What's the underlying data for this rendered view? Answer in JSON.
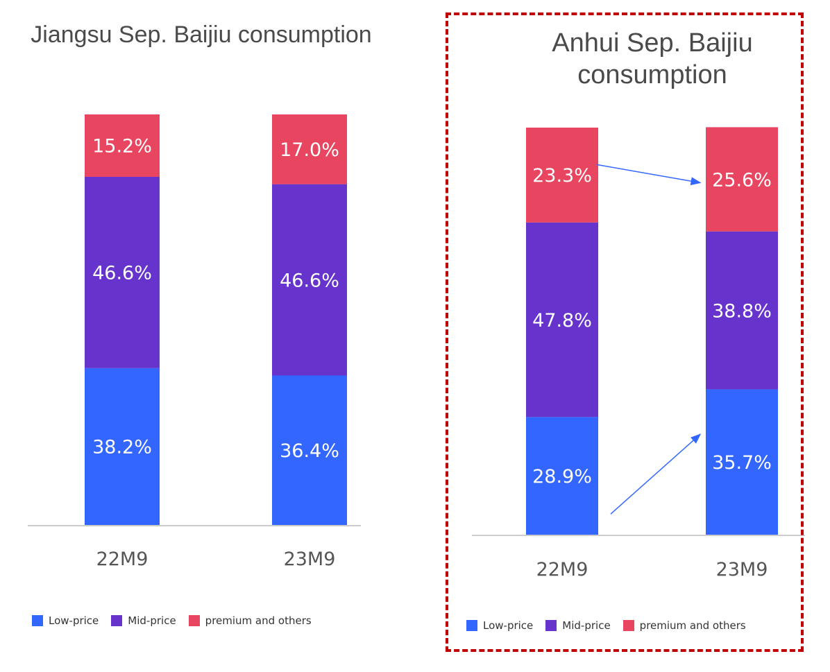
{
  "colors": {
    "low": "#3366ff",
    "mid": "#6633cc",
    "premium": "#e84660",
    "axis": "#cccccc",
    "arrow": "#3366ff",
    "highlight": "#c00000"
  },
  "chart_data": [
    {
      "type": "bar",
      "stacked": true,
      "title": "Jiangsu Sep. Baijiu consumption",
      "categories": [
        "22M9",
        "23M9"
      ],
      "series": [
        {
          "name": "Low-price",
          "values": [
            38.2,
            36.4
          ],
          "labels": [
            "38.2%",
            "36.4%"
          ]
        },
        {
          "name": "Mid-price",
          "values": [
            46.6,
            46.6
          ],
          "labels": [
            "46.6%",
            "46.6%"
          ]
        },
        {
          "name": "premium and others",
          "values": [
            15.2,
            17.0
          ],
          "labels": [
            "15.2%",
            "17.0%"
          ]
        }
      ],
      "ylim": [
        0,
        100
      ],
      "legend": "bottom-left",
      "grid": false
    },
    {
      "type": "bar",
      "stacked": true,
      "title": "Anhui Sep. Baijiu consumption",
      "categories": [
        "22M9",
        "23M9"
      ],
      "series": [
        {
          "name": "Low-price",
          "values": [
            28.9,
            35.7
          ],
          "labels": [
            "28.9%",
            "35.7%"
          ]
        },
        {
          "name": "Mid-price",
          "values": [
            47.8,
            38.8
          ],
          "labels": [
            "47.8%",
            "38.8%"
          ]
        },
        {
          "name": "premium and others",
          "values": [
            23.3,
            25.6
          ],
          "labels": [
            "23.3%",
            "25.6%"
          ]
        }
      ],
      "ylim": [
        0,
        100
      ],
      "legend": "bottom-left",
      "grid": false,
      "highlighted": true,
      "annotations": [
        "arrow from premium 22M9 to premium 23M9",
        "arrow from low-price 22M9 to low-price 23M9"
      ]
    }
  ]
}
